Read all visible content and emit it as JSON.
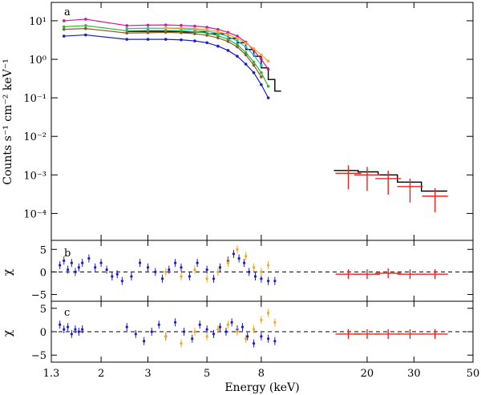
{
  "chart_data": {
    "type": "scatter",
    "xlabel": "Energy (keV)",
    "xscale": "log",
    "xlim": [
      1.3,
      50
    ],
    "xticks": [
      "1.3",
      "2",
      "3",
      "5",
      "8",
      "20",
      "30",
      "50"
    ],
    "xtick_values": [
      1.3,
      2,
      3,
      5,
      8,
      20,
      30,
      50
    ],
    "panels": [
      {
        "label": "a",
        "ylabel": "Counts s⁻¹ cm⁻² keV⁻¹",
        "yscale": "log",
        "ylim": [
          2e-05,
          30
        ],
        "yticks": [
          "10¹",
          "10⁰",
          "10⁻¹",
          "10⁻²",
          "10⁻³",
          "10⁻⁴"
        ],
        "ytick_values": [
          10,
          1,
          0.1,
          0.01,
          0.001,
          0.0001
        ],
        "spectra": [
          {
            "color": "#d0189a",
            "energy": [
              1.45,
              1.75,
              2.5,
              3.0,
              3.5,
              4.0,
              4.5,
              5.0,
              5.5,
              6.0,
              6.5,
              7.0,
              7.5,
              8.0,
              8.5
            ],
            "flux": [
              10,
              11,
              7.5,
              7.7,
              7.8,
              7.6,
              7.3,
              6.8,
              6.0,
              5.0,
              4.0,
              2.8,
              1.7,
              1.0,
              0.55
            ]
          },
          {
            "color": "#2db82d",
            "energy": [
              1.45,
              1.75,
              2.5,
              3.0,
              3.5,
              4.0,
              4.5,
              5.0,
              5.5,
              6.0,
              6.5,
              7.0,
              7.5,
              8.0,
              8.5
            ],
            "flux": [
              7,
              7.5,
              5.5,
              5.6,
              5.6,
              5.5,
              5.2,
              4.8,
              4.1,
              3.3,
              2.4,
              1.5,
              0.85,
              0.45,
              0.2
            ]
          },
          {
            "color": "#2ab6c8",
            "energy": [
              2.5,
              3.0,
              3.5,
              4.0,
              4.5,
              5.0,
              5.5,
              6.0,
              6.5,
              7.0,
              7.5,
              8.0
            ],
            "flux": [
              6.3,
              6.4,
              6.4,
              6.2,
              5.9,
              5.4,
              4.7,
              3.9,
              3.0,
              2.1,
              1.3,
              0.7
            ]
          },
          {
            "color": "#8a5a2a",
            "energy": [
              1.45,
              1.75,
              2.5,
              3.0,
              3.5,
              4.0,
              4.5,
              5.0,
              5.5,
              6.0,
              6.5,
              7.0,
              7.5,
              8.0
            ],
            "flux": [
              6,
              6.3,
              4.8,
              4.9,
              5.0,
              4.9,
              4.6,
              4.2,
              3.6,
              2.9,
              2.1,
              1.3,
              0.7,
              0.35
            ]
          },
          {
            "color": "#1c1cc8",
            "energy": [
              1.45,
              1.75,
              2.5,
              3.0,
              3.5,
              4.0,
              4.5,
              5.0,
              5.5,
              6.0,
              6.5,
              7.0,
              7.5,
              8.0,
              8.5
            ],
            "flux": [
              4,
              4.3,
              3.3,
              3.3,
              3.3,
              3.2,
              3.0,
              2.7,
              2.2,
              1.7,
              1.2,
              0.75,
              0.45,
              0.22,
              0.1
            ]
          },
          {
            "color": "#f5a623",
            "energy": [
              3.5,
              4.0,
              4.5,
              5.0,
              5.5,
              6.0,
              6.5,
              7.0,
              7.5,
              8.0,
              8.5
            ],
            "flux": [
              6.5,
              6.5,
              6.3,
              5.9,
              5.2,
              4.4,
              3.5,
              2.6,
              1.9,
              1.3,
              0.9
            ]
          },
          {
            "color": "#e8241c",
            "energy": [
              17,
              20,
              24,
              29,
              36
            ],
            "flux": [
              0.0011,
              0.001,
              0.0008,
              0.0005,
              0.00028
            ]
          }
        ],
        "model_steps": [
          {
            "x0": 2.5,
            "x1": 4.0,
            "y": 5.3
          },
          {
            "x0": 4.0,
            "x1": 5.0,
            "y": 5.1
          },
          {
            "x0": 5.0,
            "x1": 6.0,
            "y": 4.6
          },
          {
            "x0": 6.0,
            "x1": 6.5,
            "y": 3.5
          },
          {
            "x0": 6.5,
            "x1": 7.0,
            "y": 2.7
          },
          {
            "x0": 7.0,
            "x1": 7.5,
            "y": 1.8
          },
          {
            "x0": 7.5,
            "x1": 8.0,
            "y": 1.2
          },
          {
            "x0": 8.0,
            "x1": 8.5,
            "y": 0.6
          },
          {
            "x0": 8.5,
            "x1": 9.0,
            "y": 0.3
          },
          {
            "x0": 9.0,
            "x1": 9.5,
            "y": 0.15
          },
          {
            "x0": 15,
            "x1": 18.5,
            "y": 0.0013
          },
          {
            "x0": 18.5,
            "x1": 22,
            "y": 0.0012
          },
          {
            "x0": 22,
            "x1": 26,
            "y": 0.001
          },
          {
            "x0": 26,
            "x1": 32,
            "y": 0.00065
          },
          {
            "x0": 32,
            "x1": 40,
            "y": 0.00038
          }
        ]
      },
      {
        "label": "b",
        "ylabel": "χ",
        "ylim": [
          -6.5,
          7
        ],
        "yticks": [
          "5",
          "0",
          "−5"
        ],
        "ytick_values": [
          5,
          0,
          -5
        ],
        "residuals": [
          {
            "color": "#1c1cc8",
            "energy": [
              1.4,
              1.45,
              1.5,
              1.55,
              1.6,
              1.65,
              1.7,
              1.8,
              1.9,
              2.0,
              2.1,
              2.2,
              2.3,
              2.4,
              2.6,
              2.8,
              3.0,
              3.2,
              3.4,
              3.6,
              3.8,
              4.0,
              4.3,
              4.6,
              5.0,
              5.3,
              5.6,
              6.0,
              6.3,
              6.6,
              6.9,
              7.2,
              7.6,
              8.0,
              8.5,
              9.0
            ],
            "chi": [
              1.5,
              2.5,
              0.5,
              2.0,
              0.0,
              1.0,
              2.0,
              3.0,
              1.0,
              2.0,
              0.5,
              -1.0,
              -0.5,
              -2.0,
              -1.0,
              2.0,
              1.0,
              0.0,
              -1.5,
              0.5,
              2.0,
              1.0,
              -1.0,
              2.0,
              0.5,
              -1.5,
              1.0,
              2.5,
              4.0,
              3.0,
              2.0,
              0.0,
              -1.0,
              -1.5,
              -2.0,
              -2.0
            ]
          },
          {
            "color": "#f5a623",
            "energy": [
              3.5,
              4.0,
              4.5,
              5.0,
              5.5,
              6.0,
              6.5,
              7.0,
              7.5,
              8.0,
              8.5
            ],
            "chi": [
              0.0,
              -1.0,
              0.5,
              -1.5,
              0.0,
              2.0,
              5.0,
              3.5,
              1.0,
              0.0,
              1.5
            ]
          },
          {
            "color": "#e8241c",
            "energy": [
              17,
              20,
              24,
              29,
              36
            ],
            "chi": [
              -0.5,
              -0.5,
              -0.3,
              -0.5,
              -0.5
            ]
          }
        ]
      },
      {
        "label": "c",
        "ylabel": "χ",
        "ylim": [
          -6.5,
          6.5
        ],
        "yticks": [
          "5",
          "0",
          "−5"
        ],
        "ytick_values": [
          5,
          0,
          -5
        ],
        "residuals": [
          {
            "color": "#1c1cc8",
            "energy": [
              1.4,
              1.45,
              1.5,
              1.55,
              1.6,
              1.65,
              1.7,
              2.5,
              2.7,
              2.9,
              3.1,
              3.3,
              3.5,
              3.8,
              4.1,
              4.4,
              4.7,
              5.0,
              5.3,
              5.6,
              5.9,
              6.2,
              6.5,
              6.8,
              7.1,
              7.5,
              8.0,
              8.5,
              9.0
            ],
            "chi": [
              1.5,
              0.5,
              1.0,
              -0.5,
              0.5,
              0.0,
              0.5,
              1.0,
              -0.5,
              -2.0,
              0.0,
              1.5,
              -1.0,
              2.0,
              0.0,
              -1.5,
              1.5,
              0.5,
              -0.5,
              1.0,
              0.0,
              2.0,
              0.5,
              1.0,
              -1.0,
              -2.5,
              -1.0,
              -1.5,
              -2.0
            ]
          },
          {
            "color": "#f5a623",
            "energy": [
              3.5,
              4.0,
              4.5,
              5.0,
              5.5,
              6.0,
              6.5,
              7.0,
              7.5,
              8.0,
              8.5,
              9.0
            ],
            "chi": [
              -1.0,
              -2.5,
              0.0,
              -1.0,
              0.5,
              1.5,
              0.0,
              -1.5,
              0.5,
              2.5,
              4.0,
              2.0
            ]
          },
          {
            "color": "#e8241c",
            "energy": [
              17,
              20,
              24,
              29,
              36
            ],
            "chi": [
              -0.5,
              -0.5,
              -0.5,
              -0.5,
              -0.5
            ]
          }
        ]
      }
    ]
  }
}
